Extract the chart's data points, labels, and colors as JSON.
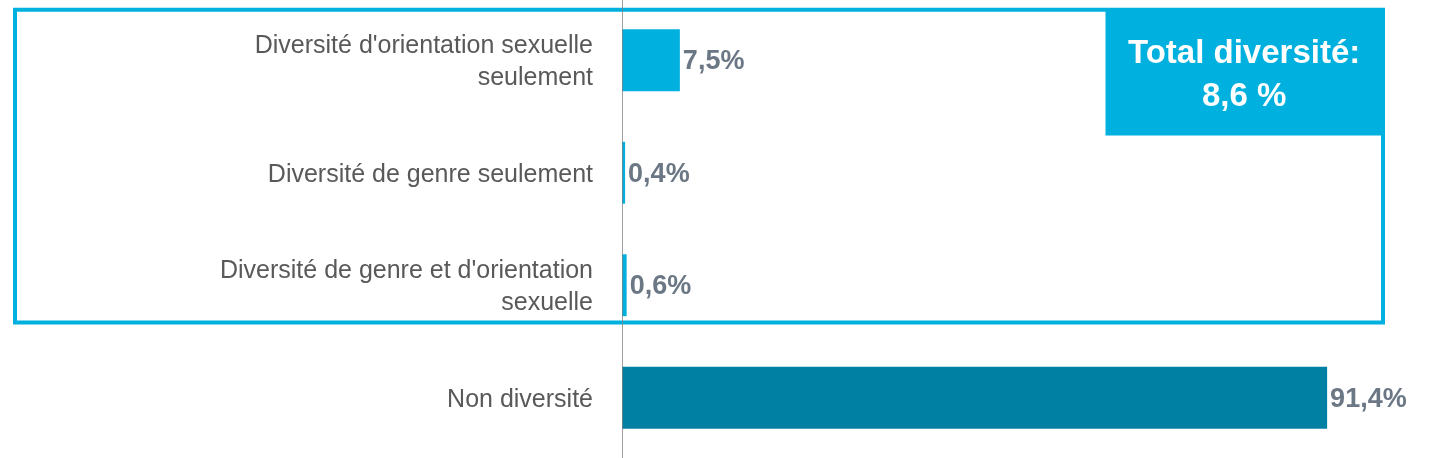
{
  "chart_data": {
    "type": "bar",
    "orientation": "horizontal",
    "categories": [
      "Diversité d'orientation sexuelle seulement",
      "Diversité de genre seulement",
      "Diversité de genre et d'orientation sexuelle",
      "Non diversité"
    ],
    "values": [
      7.5,
      0.4,
      0.6,
      91.4
    ],
    "colors": [
      "#00b0de",
      "#00b0de",
      "#00b0de",
      "#0081a4"
    ],
    "value_labels": [
      "7,5%",
      "0,4%",
      "0,6%",
      "91,4%"
    ],
    "annotations": [
      "Total diversité:\n8,6 %"
    ],
    "tick_labels": "y",
    "grid": false
  }
}
